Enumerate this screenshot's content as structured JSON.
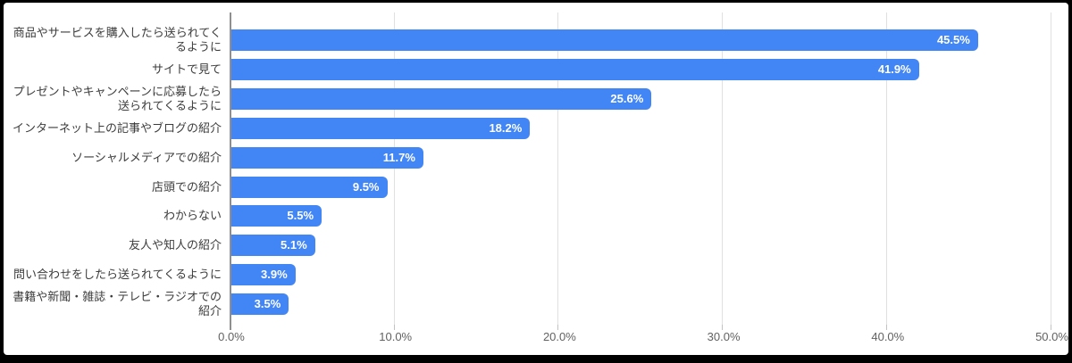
{
  "window": {
    "frame_color": "#000000",
    "background_color": "#ffffff"
  },
  "chart": {
    "bar_color": "#4285f4",
    "value_label_color": "#ffffff",
    "category_label_color": "#3c3c3c",
    "axis_label_color": "#616161",
    "gridline_color": "#e0e0e0",
    "axis_line_color": "#8f8f8f",
    "tick_color": "#c2c2c2"
  },
  "chart_data": {
    "type": "bar",
    "orientation": "horizontal",
    "title": "",
    "xlabel": "",
    "ylabel": "",
    "grid": true,
    "legend": "none",
    "xlim": [
      0,
      50
    ],
    "x_tick_values": [
      0,
      10,
      20,
      30,
      40,
      50
    ],
    "x_tick_labels": [
      "0.0%",
      "10.0%",
      "20.0%",
      "30.0%",
      "40.0%",
      "50.0%"
    ],
    "categories": [
      "商品やサービスを購入したら送られてく\nるように",
      "サイトで見て",
      "プレゼントやキャンペーンに応募したら\n送られてくるように",
      "インターネット上の記事やブログの紹介",
      "ソーシャルメディアでの紹介",
      "店頭での紹介",
      "わからない",
      "友人や知人の紹介",
      "問い合わせをしたら送られてくるように",
      "書籍や新聞・雑誌・テレビ・ラジオでの\n紹介"
    ],
    "values": [
      45.5,
      41.9,
      25.6,
      18.2,
      11.7,
      9.5,
      5.5,
      5.1,
      3.9,
      3.5
    ],
    "value_labels": [
      "45.5%",
      "41.9%",
      "25.6%",
      "18.2%",
      "11.7%",
      "9.5%",
      "5.5%",
      "5.1%",
      "3.9%",
      "3.5%"
    ]
  }
}
